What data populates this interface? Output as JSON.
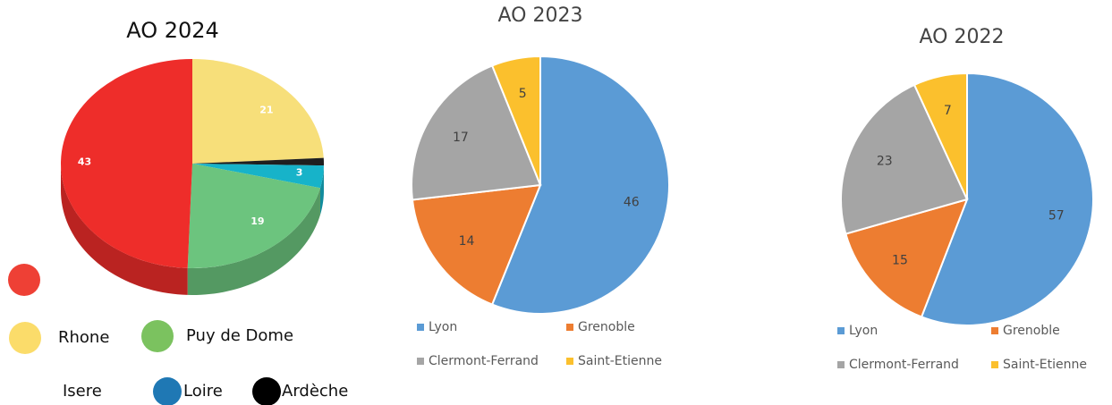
{
  "chart_data": [
    {
      "type": "pie3d",
      "title": "AO 2024",
      "values": [
        21,
        1,
        3,
        19,
        43
      ],
      "value_labels": [
        "21",
        null,
        "3",
        "19",
        "43"
      ],
      "colors": [
        "#f7df7a",
        "#1f1f1f",
        "#17b3c9",
        "#6cc47e",
        "#ee2d2a"
      ],
      "legend": [
        {
          "label": null,
          "color": "#ee4035"
        },
        {
          "label": "Rhone",
          "color": "#fbdc6a"
        },
        {
          "label": "Puy de Dome",
          "color": "#7bc25f"
        },
        {
          "label": "Isere",
          "color": null
        },
        {
          "label": "Loire",
          "color": "#1f78b4"
        },
        {
          "label": "Ardèche",
          "color": "#000000"
        }
      ]
    },
    {
      "type": "pie",
      "title": "AO 2023",
      "categories": [
        "Lyon",
        "Grenoble",
        "Clermont-Ferrand",
        "Saint-Etienne"
      ],
      "values": [
        46,
        14,
        17,
        5
      ],
      "colors": [
        "#5b9bd5",
        "#ed7d31",
        "#a5a5a5",
        "#fbc02d"
      ]
    },
    {
      "type": "pie",
      "title": "AO 2022",
      "categories": [
        "Lyon",
        "Grenoble",
        "Clermont-Ferrand",
        "Saint-Etienne"
      ],
      "values": [
        57,
        15,
        23,
        7
      ],
      "colors": [
        "#5b9bd5",
        "#ed7d31",
        "#a5a5a5",
        "#fbc02d"
      ]
    }
  ]
}
